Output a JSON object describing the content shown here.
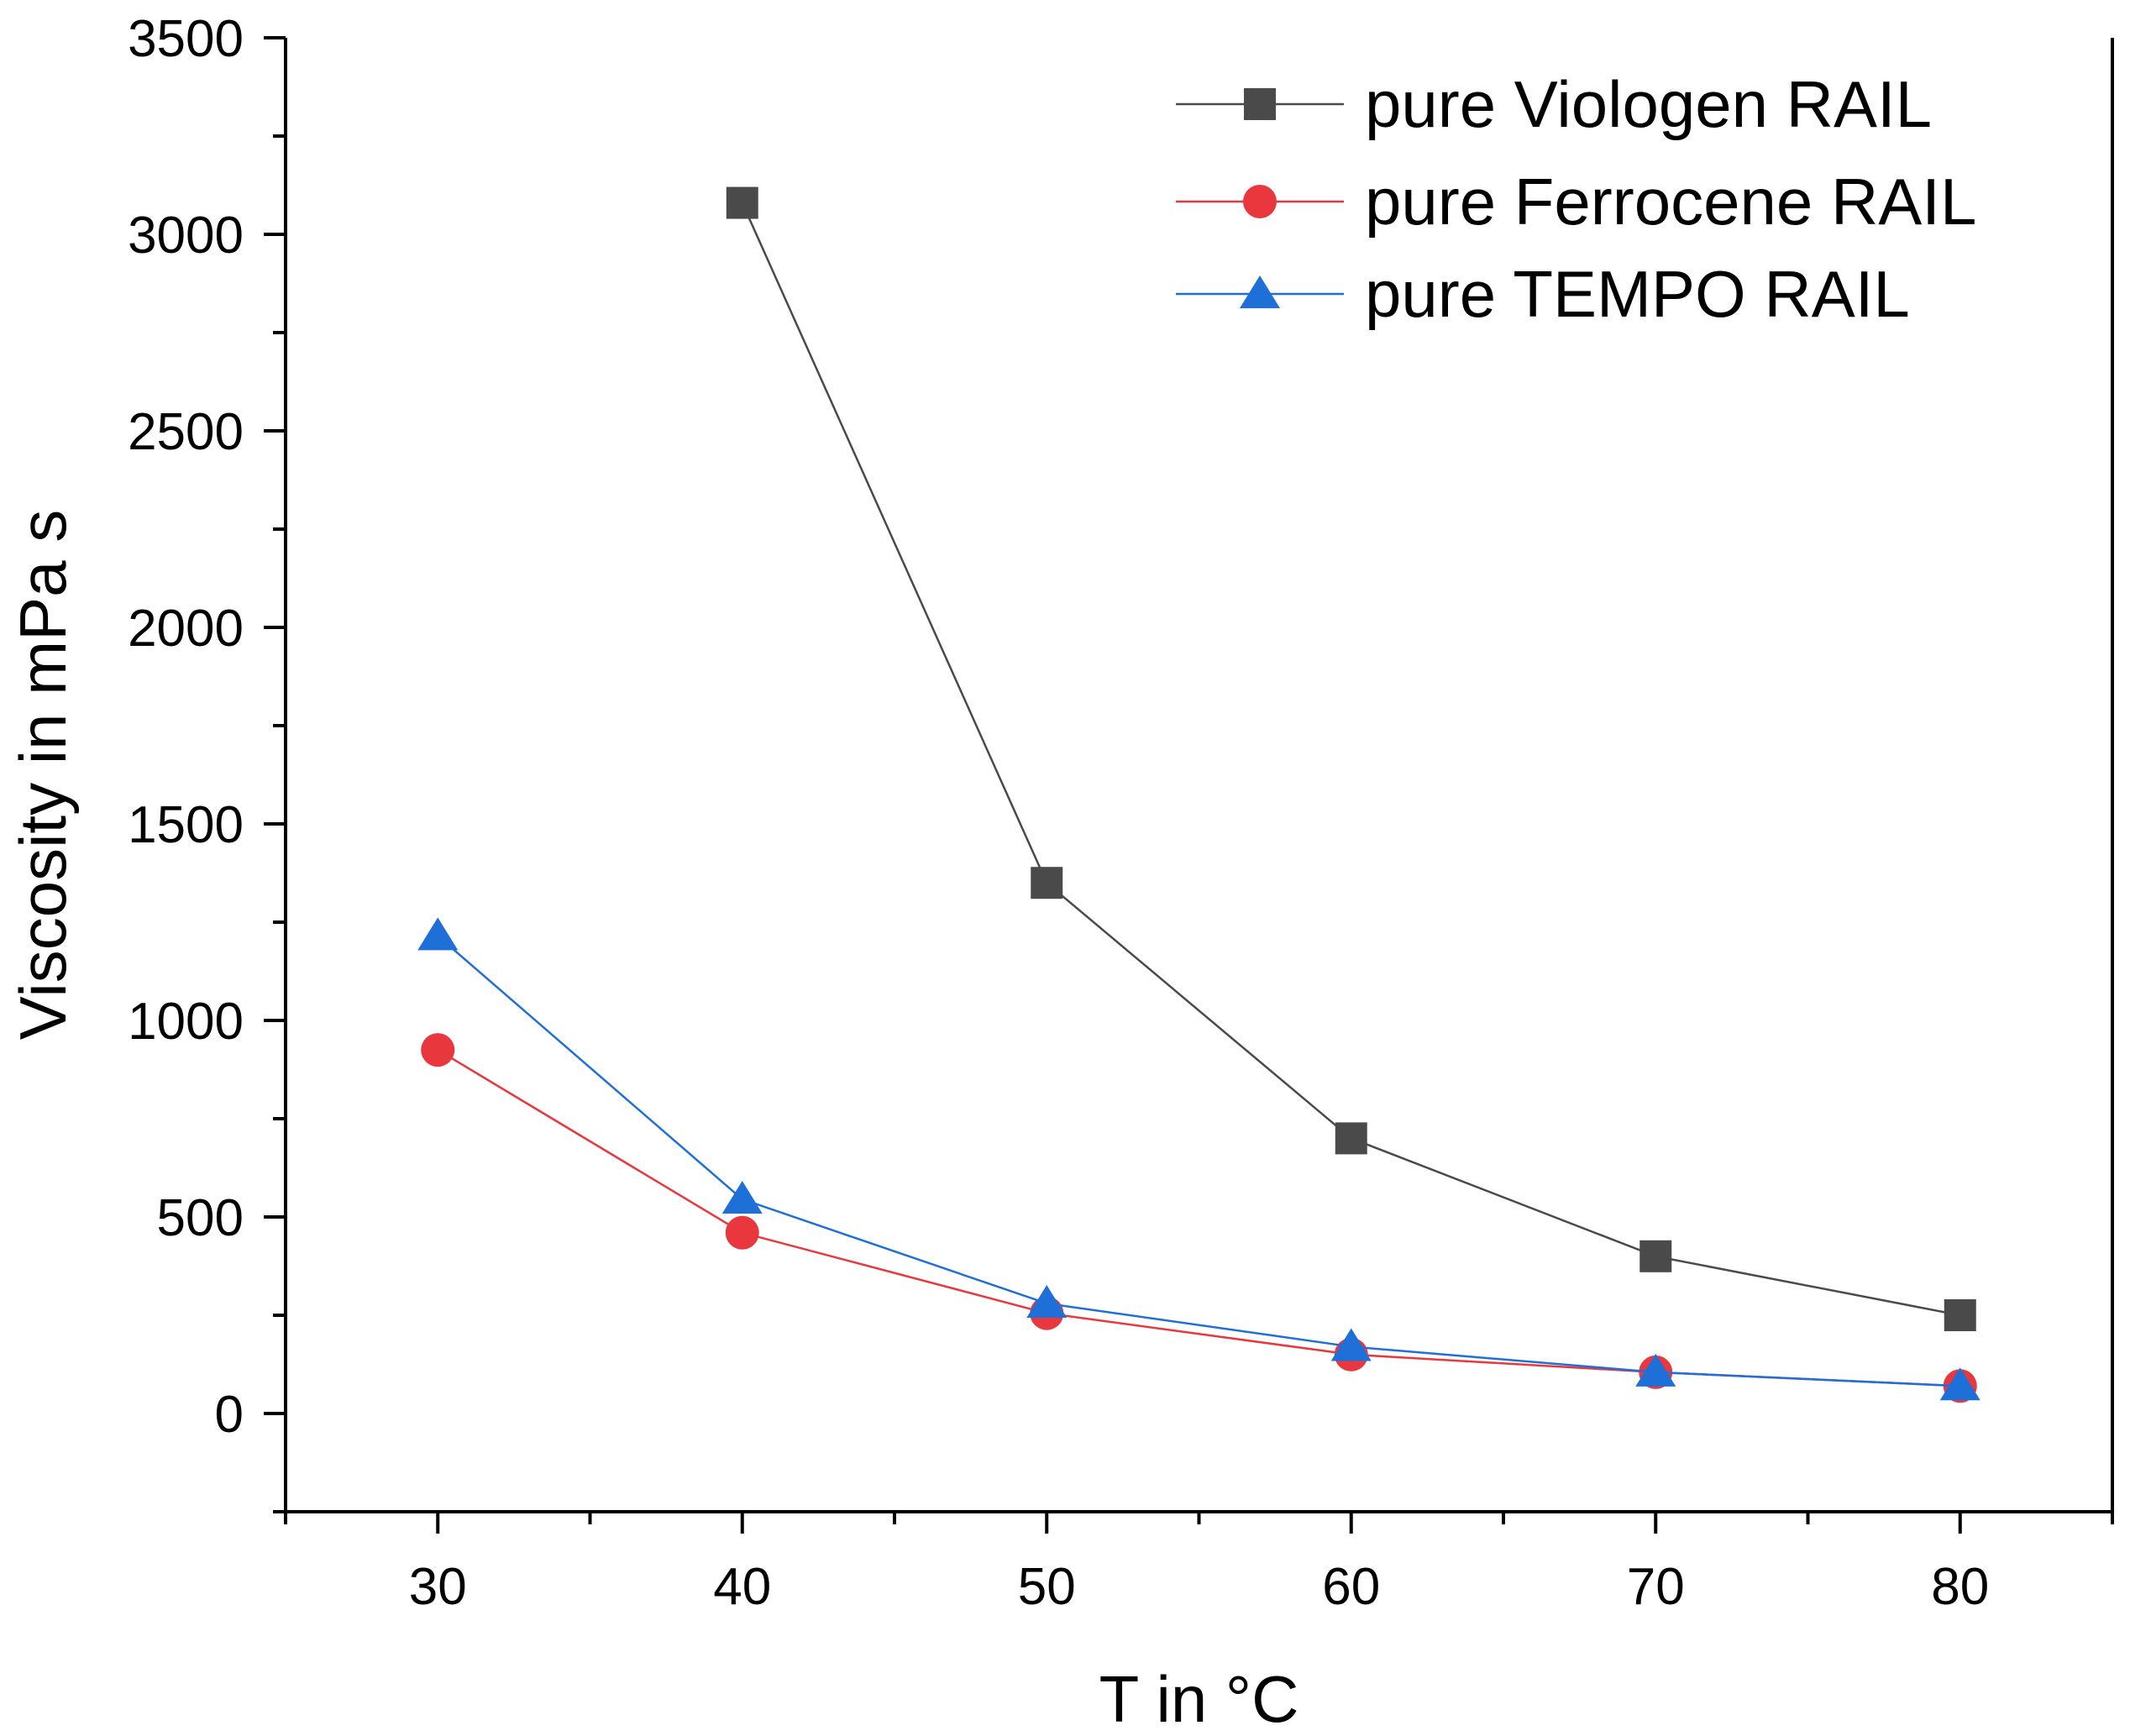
{
  "chart_data": {
    "type": "line",
    "title": "",
    "xlabel": "T in °C",
    "ylabel": "Viscosity in mPa s",
    "xlim": [
      25,
      85
    ],
    "ylim": [
      -250,
      3500
    ],
    "x_ticks": [
      30,
      40,
      50,
      60,
      70,
      80
    ],
    "x_tick_labels": [
      "30",
      "40",
      "50",
      "60",
      "70",
      "80"
    ],
    "y_ticks": [
      0,
      500,
      1000,
      1500,
      2000,
      2500,
      3000,
      3500
    ],
    "y_tick_labels": [
      "0",
      "500",
      "1000",
      "1500",
      "2000",
      "2500",
      "3000",
      "3500"
    ],
    "grid": false,
    "legend_position": "top-right",
    "series": [
      {
        "name": "pure Viologen RAIL",
        "color": "#4a4a4a",
        "marker": "square",
        "x": [
          40,
          50,
          60,
          70,
          80
        ],
        "values": [
          3080,
          1350,
          700,
          400,
          250
        ]
      },
      {
        "name": "pure Ferrocene RAIL",
        "color": "#e8383d",
        "marker": "circle",
        "x": [
          30,
          40,
          50,
          60,
          70,
          80
        ],
        "values": [
          925,
          460,
          255,
          150,
          105,
          70
        ]
      },
      {
        "name": "pure TEMPO RAIL",
        "color": "#1f6fd8",
        "marker": "triangle",
        "x": [
          30,
          40,
          50,
          60,
          70,
          80
        ],
        "values": [
          1215,
          545,
          280,
          170,
          105,
          70
        ]
      }
    ]
  }
}
